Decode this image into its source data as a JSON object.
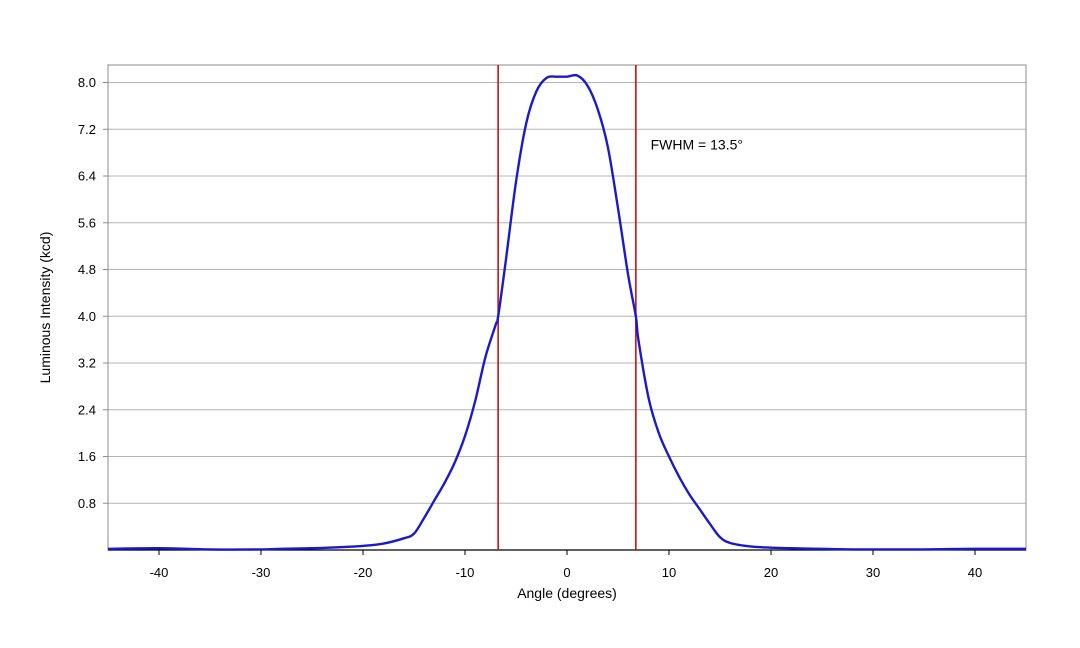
{
  "chart_data": {
    "type": "line",
    "xlabel": "Angle (degrees)",
    "ylabel": "Luminous Intensity (kcd)",
    "xlim": [
      -45,
      45
    ],
    "ylim": [
      0,
      8.3
    ],
    "xticks": [
      -40,
      -30,
      -20,
      -10,
      0,
      10,
      20,
      30,
      40
    ],
    "yticks": [
      "0.8",
      "1.6",
      "2.4",
      "3.2",
      "4.0",
      "4.8",
      "5.6",
      "6.4",
      "7.2",
      "8.0"
    ],
    "grid": "horizontal",
    "colors": {
      "series": "#1a1acc",
      "markers": "#cc1111",
      "grid": "#b4b4b4",
      "frame": "#8c8c8c"
    },
    "series": [
      {
        "x": [
          -45,
          -40,
          -35,
          -30,
          -28,
          -25,
          -22,
          -20,
          -18,
          -16,
          -15,
          -14,
          -13,
          -12,
          -11,
          -10,
          -9,
          -8,
          -7,
          -6.75,
          -6,
          -5,
          -4,
          -3,
          -2,
          -1,
          0,
          1,
          2,
          3,
          4,
          5,
          6,
          6.75,
          7,
          8,
          9,
          10,
          11,
          12,
          13,
          14,
          15,
          16,
          18,
          20,
          22,
          25,
          28,
          30,
          35,
          40,
          45
        ],
        "y": [
          0.02,
          0.03,
          0.01,
          0.01,
          0.02,
          0.03,
          0.05,
          0.07,
          0.11,
          0.2,
          0.28,
          0.55,
          0.85,
          1.15,
          1.5,
          1.95,
          2.55,
          3.3,
          3.85,
          4.0,
          4.95,
          6.3,
          7.3,
          7.85,
          8.08,
          8.1,
          8.1,
          8.12,
          7.95,
          7.55,
          6.9,
          5.85,
          4.7,
          4.0,
          3.6,
          2.6,
          2.0,
          1.6,
          1.25,
          0.95,
          0.7,
          0.45,
          0.22,
          0.12,
          0.06,
          0.04,
          0.03,
          0.02,
          0.01,
          0.01,
          0.01,
          0.02,
          0.02
        ]
      }
    ],
    "markers": [
      -6.75,
      6.75
    ],
    "annotations": [
      {
        "text": "FWHM = 13.5°",
        "x": 8.2,
        "y": 6.85
      }
    ]
  }
}
